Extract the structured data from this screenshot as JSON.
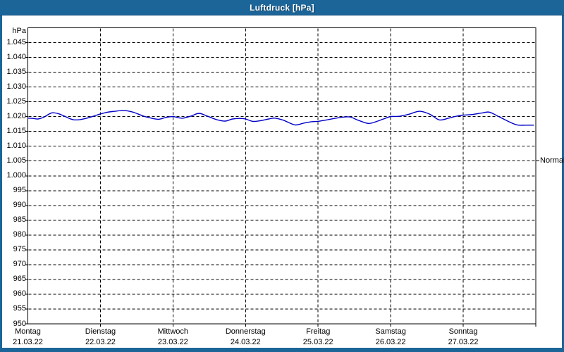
{
  "window": {
    "title": "Luftdruck [hPa]"
  },
  "colors": {
    "frame": "#1c6599",
    "plot_background": "#ffffff",
    "grid": "#000000",
    "line": "#0000c8",
    "title_text": "#ffffff",
    "label_text": "#000000"
  },
  "chart_data": {
    "type": "line",
    "title": "Luftdruck [hPa]",
    "ylabel_unit": "hPa",
    "ylim": [
      950,
      1050
    ],
    "grid": true,
    "legend_position": "none",
    "y_ticks": [
      {
        "value": 1045,
        "label": "1.045"
      },
      {
        "value": 1040,
        "label": "1.040"
      },
      {
        "value": 1035,
        "label": "1.035"
      },
      {
        "value": 1030,
        "label": "1.030"
      },
      {
        "value": 1025,
        "label": "1.025"
      },
      {
        "value": 1020,
        "label": "1.020"
      },
      {
        "value": 1015,
        "label": "1.015"
      },
      {
        "value": 1010,
        "label": "1.010"
      },
      {
        "value": 1005,
        "label": "1.005"
      },
      {
        "value": 1000,
        "label": "1.000"
      },
      {
        "value": 995,
        "label": "995"
      },
      {
        "value": 990,
        "label": "990"
      },
      {
        "value": 985,
        "label": "985"
      },
      {
        "value": 980,
        "label": "980"
      },
      {
        "value": 975,
        "label": "975"
      },
      {
        "value": 970,
        "label": "970"
      },
      {
        "value": 965,
        "label": "965"
      },
      {
        "value": 960,
        "label": "960"
      },
      {
        "value": 955,
        "label": "955"
      },
      {
        "value": 950,
        "label": "950"
      }
    ],
    "x_days": [
      {
        "weekday": "Montag",
        "date": "21.03.22"
      },
      {
        "weekday": "Dienstag",
        "date": "22.03.22"
      },
      {
        "weekday": "Mittwoch",
        "date": "23.03.22"
      },
      {
        "weekday": "Donnerstag",
        "date": "24.03.22"
      },
      {
        "weekday": "Freitag",
        "date": "25.03.22"
      },
      {
        "weekday": "Samstag",
        "date": "26.03.22"
      },
      {
        "weekday": "Sonntag",
        "date": "27.03.22"
      }
    ],
    "normal_marker": {
      "label": "Normal",
      "value": 1005
    },
    "series": [
      {
        "name": "Luftdruck",
        "unit": "hPa",
        "points": [
          [
            0.0,
            1019.5
          ],
          [
            0.07,
            1019.4
          ],
          [
            0.14,
            1019.2
          ],
          [
            0.22,
            1019.8
          ],
          [
            0.28,
            1020.7
          ],
          [
            0.34,
            1021.3
          ],
          [
            0.42,
            1021.0
          ],
          [
            0.5,
            1020.2
          ],
          [
            0.58,
            1019.3
          ],
          [
            0.64,
            1018.9
          ],
          [
            0.72,
            1019.0
          ],
          [
            0.8,
            1019.4
          ],
          [
            0.9,
            1020.1
          ],
          [
            1.0,
            1020.9
          ],
          [
            1.1,
            1021.5
          ],
          [
            1.2,
            1021.8
          ],
          [
            1.32,
            1022.1
          ],
          [
            1.45,
            1021.5
          ],
          [
            1.58,
            1020.3
          ],
          [
            1.7,
            1019.5
          ],
          [
            1.8,
            1019.1
          ],
          [
            1.9,
            1019.7
          ],
          [
            2.0,
            1020.0
          ],
          [
            2.08,
            1019.6
          ],
          [
            2.14,
            1019.5
          ],
          [
            2.25,
            1020.2
          ],
          [
            2.36,
            1021.1
          ],
          [
            2.48,
            1020.1
          ],
          [
            2.6,
            1019.0
          ],
          [
            2.72,
            1018.5
          ],
          [
            2.82,
            1019.2
          ],
          [
            2.92,
            1019.4
          ],
          [
            3.0,
            1019.2
          ],
          [
            3.1,
            1018.4
          ],
          [
            3.2,
            1018.6
          ],
          [
            3.32,
            1019.2
          ],
          [
            3.4,
            1019.5
          ],
          [
            3.52,
            1018.8
          ],
          [
            3.68,
            1017.2
          ],
          [
            3.8,
            1017.8
          ],
          [
            3.92,
            1018.3
          ],
          [
            4.0,
            1018.4
          ],
          [
            4.12,
            1018.9
          ],
          [
            4.28,
            1019.6
          ],
          [
            4.43,
            1019.9
          ],
          [
            4.55,
            1018.8
          ],
          [
            4.69,
            1017.7
          ],
          [
            4.8,
            1018.3
          ],
          [
            4.9,
            1019.2
          ],
          [
            5.0,
            1020.0
          ],
          [
            5.12,
            1020.1
          ],
          [
            5.25,
            1020.8
          ],
          [
            5.4,
            1021.8
          ],
          [
            5.54,
            1020.8
          ],
          [
            5.67,
            1018.9
          ],
          [
            5.8,
            1019.5
          ],
          [
            5.9,
            1020.1
          ],
          [
            6.0,
            1020.5
          ],
          [
            6.12,
            1020.7
          ],
          [
            6.25,
            1021.2
          ],
          [
            6.36,
            1021.5
          ],
          [
            6.49,
            1020.0
          ],
          [
            6.62,
            1018.4
          ],
          [
            6.74,
            1017.2
          ],
          [
            6.85,
            1017.1
          ],
          [
            6.97,
            1017.1
          ]
        ]
      }
    ]
  }
}
